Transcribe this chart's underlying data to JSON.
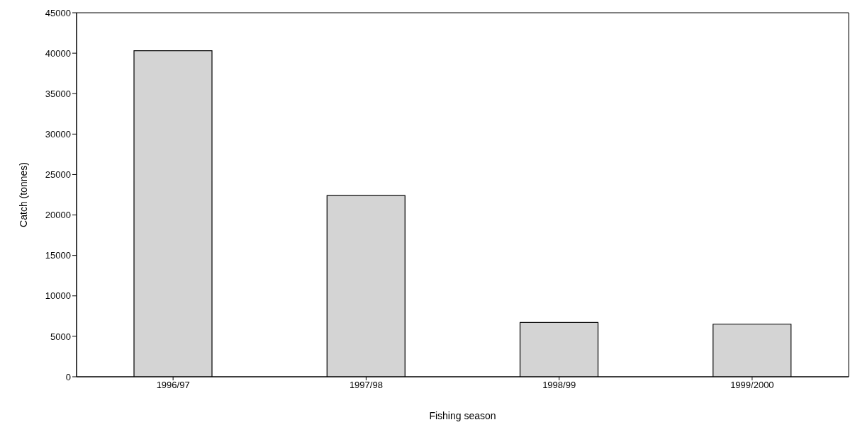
{
  "chart_data": {
    "type": "bar",
    "xlabel": "Fishing season",
    "ylabel": "Catch (tonnes)",
    "categories": [
      "1996/97",
      "1997/98",
      "1998/99",
      "1999/2000"
    ],
    "values": [
      40300,
      22400,
      6700,
      6500
    ],
    "color": "#d4d4d4",
    "ylim": [
      0,
      45000
    ],
    "yticks": [
      0,
      5000,
      10000,
      15000,
      20000,
      25000,
      30000,
      35000,
      40000,
      45000
    ],
    "grid": false,
    "legend": false
  }
}
